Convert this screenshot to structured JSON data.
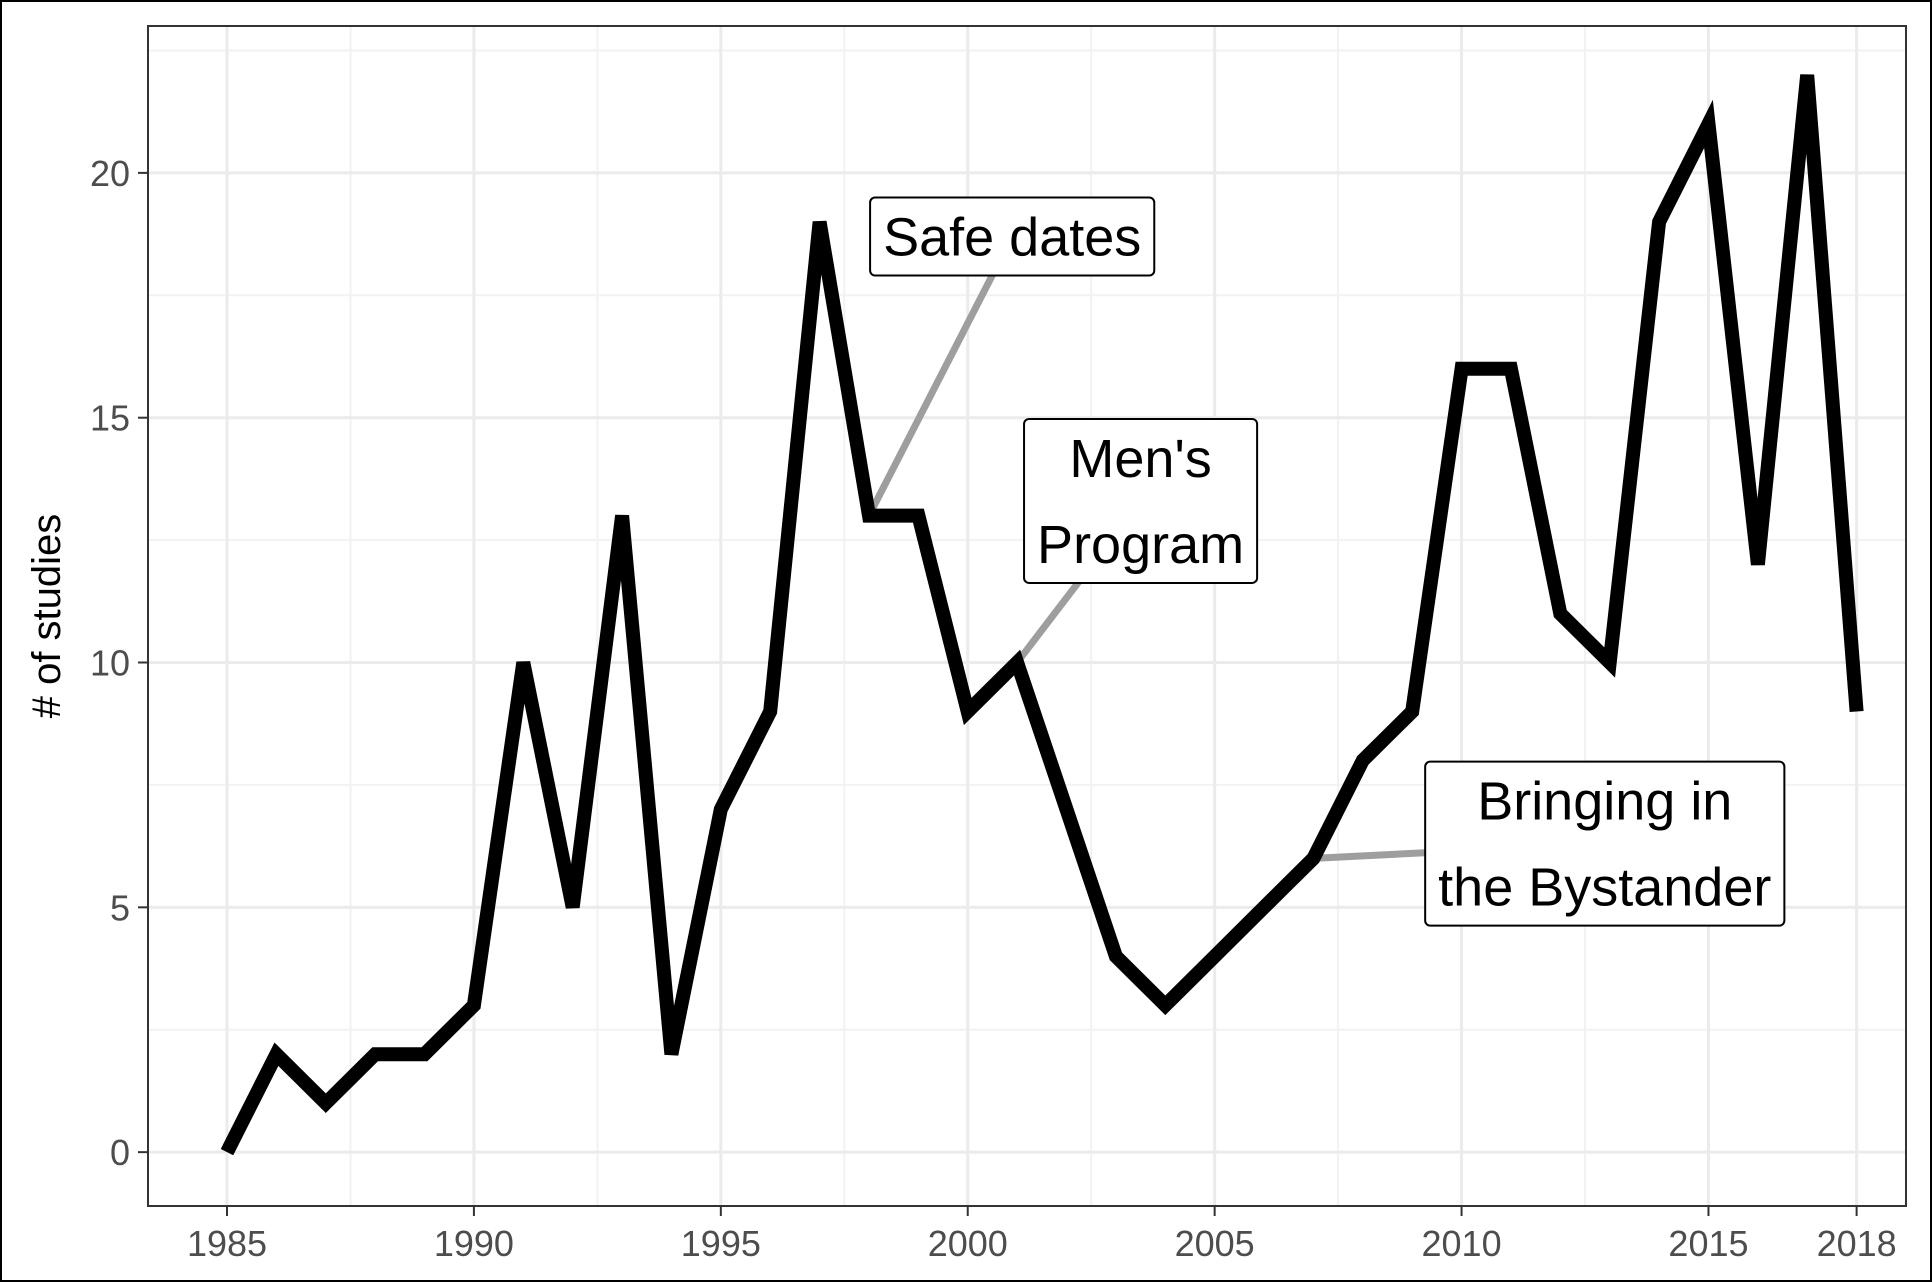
{
  "chart_data": {
    "type": "line",
    "title": "",
    "xlabel": "",
    "ylabel": "# of studies",
    "x_ticks": [
      1985,
      1990,
      1995,
      2000,
      2005,
      2010,
      2015,
      2018
    ],
    "y_ticks": [
      0,
      5,
      10,
      15,
      20
    ],
    "xlim": [
      1983.4,
      2019
    ],
    "ylim": [
      -1.1,
      23
    ],
    "grid": true,
    "line_color": "#000000",
    "connector_color": "#9e9e9e",
    "x": [
      1985,
      1986,
      1987,
      1988,
      1989,
      1990,
      1991,
      1992,
      1993,
      1994,
      1995,
      1996,
      1997,
      1998,
      1999,
      2000,
      2001,
      2002,
      2003,
      2004,
      2005,
      2006,
      2007,
      2008,
      2009,
      2010,
      2011,
      2012,
      2013,
      2014,
      2015,
      2016,
      2017,
      2018
    ],
    "y": [
      0,
      2,
      1,
      2,
      2,
      3,
      10,
      5,
      13,
      2,
      7,
      9,
      19,
      13,
      13,
      9,
      10,
      7,
      4,
      3,
      4,
      5,
      6,
      8,
      9,
      16,
      16,
      11,
      10,
      19,
      21,
      12,
      22,
      9
    ],
    "annotations": [
      {
        "lines": [
          "Safe dates"
        ],
        "point": [
          1998,
          13
        ],
        "label_at": [
          2000.9,
          18.7
        ]
      },
      {
        "lines": [
          "Men's",
          "Program"
        ],
        "point": [
          2001,
          10
        ],
        "label_at": [
          2003.5,
          13.3
        ]
      },
      {
        "lines": [
          "Bringing in",
          "the Bystander"
        ],
        "point": [
          2007,
          6
        ],
        "label_at": [
          2012.9,
          6.3
        ]
      }
    ]
  }
}
